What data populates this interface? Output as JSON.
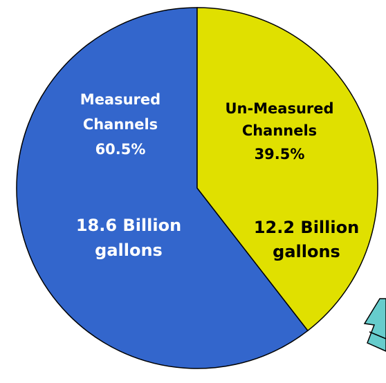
{
  "chart_data": {
    "type": "pie",
    "slices": [
      {
        "name_lines": [
          "Measured",
          "Channels"
        ],
        "percent_label": "60.5%",
        "value": 60.5,
        "amount_lines": [
          "18.6 Billion",
          "gallons"
        ],
        "amount": 18.6,
        "color": "#3366cc",
        "text_color": "#ffffff"
      },
      {
        "name_lines": [
          "Un-Measured",
          "Channels"
        ],
        "percent_label": "39.5%",
        "value": 39.5,
        "amount_lines": [
          "12.2 Billion",
          "gallons"
        ],
        "amount": 12.2,
        "color": "#e0e000",
        "text_color": "#000000"
      }
    ],
    "start_angle_deg": 0,
    "direction": "counterclockwise"
  },
  "colors": {
    "outline": "#000000",
    "callout": "#66cccc"
  }
}
